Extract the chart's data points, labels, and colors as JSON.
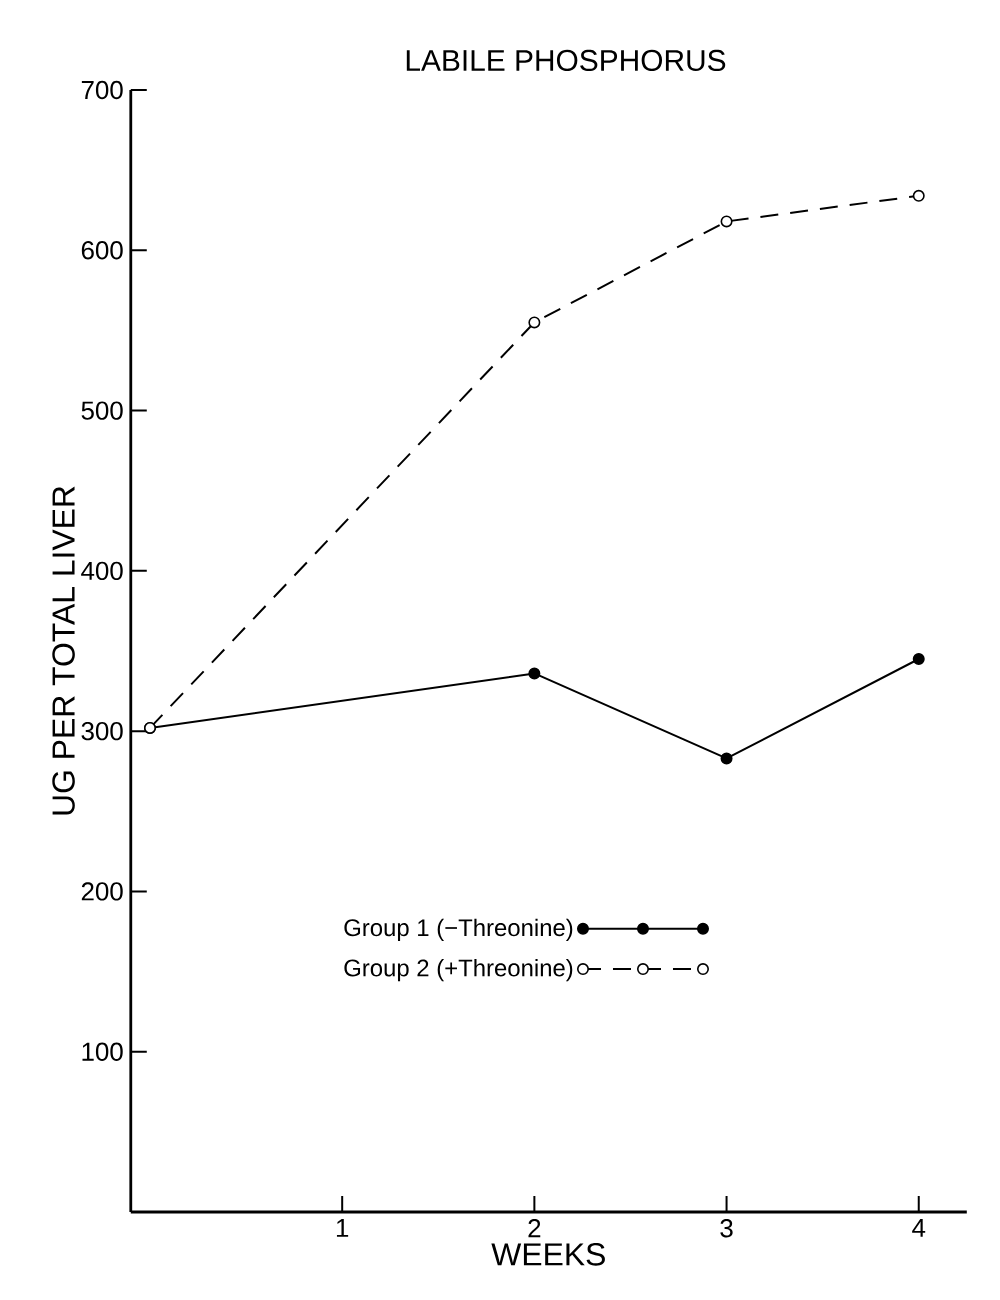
{
  "chart_data": {
    "type": "line",
    "title": "LABILE PHOSPHORUS",
    "xlabel": "WEEKS",
    "ylabel": "UG PER TOTAL LIVER",
    "x": [
      0,
      2,
      3,
      4
    ],
    "series": [
      {
        "name": "Group 1  (−Threonine)",
        "color": "#000000",
        "values": [
          302,
          336,
          283,
          345
        ],
        "line_style": "solid",
        "marker": "circle"
      },
      {
        "name": "Group 2  (+Threonine)",
        "color": "#000000",
        "values": [
          302,
          555,
          618,
          634
        ],
        "line_style": "dashed",
        "marker": "circle"
      }
    ],
    "xlim": [
      -0.1,
      4.25
    ],
    "xticks": [
      1,
      2,
      3,
      4
    ],
    "ylim": [
      0,
      700
    ],
    "yticks": [
      100,
      200,
      300,
      400,
      500,
      600,
      700
    ],
    "grid": false,
    "legend": "bottom"
  }
}
